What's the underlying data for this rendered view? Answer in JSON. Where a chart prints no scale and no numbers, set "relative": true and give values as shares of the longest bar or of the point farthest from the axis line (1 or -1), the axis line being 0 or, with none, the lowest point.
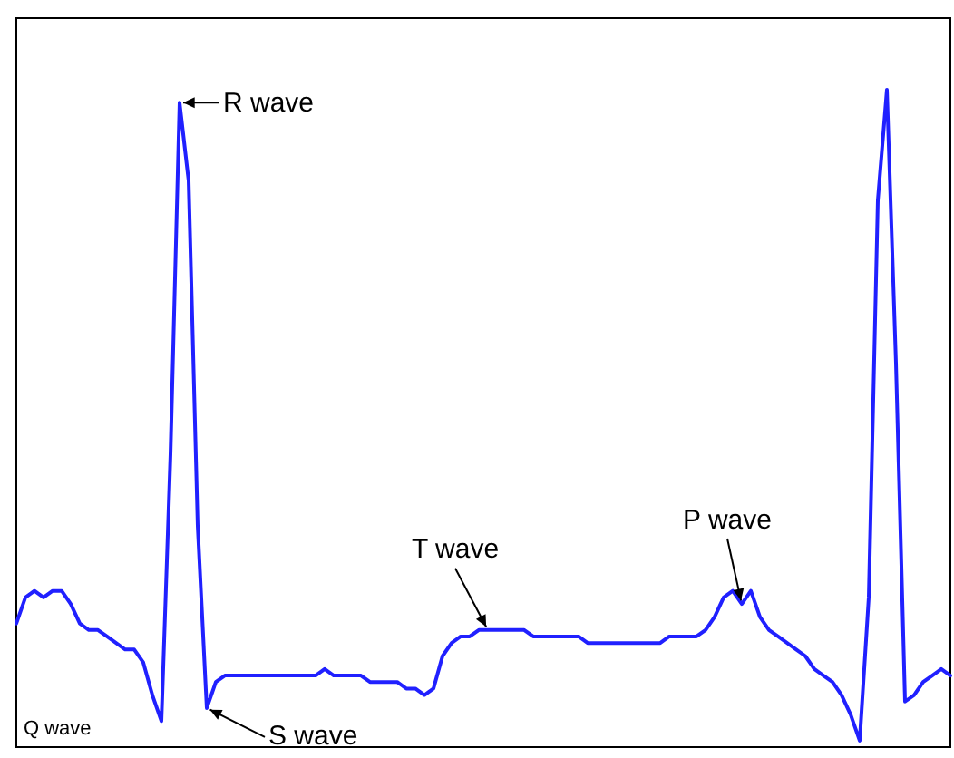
{
  "chart_data": {
    "type": "line",
    "relative": true,
    "color": "#2020ff",
    "marker": "none",
    "line_style": "solid",
    "categories": [
      null,
      null,
      null,
      null,
      null,
      null,
      null,
      null,
      null,
      null,
      null,
      null,
      null,
      null,
      null,
      null,
      null,
      null,
      null,
      null,
      null,
      null,
      null,
      null,
      null,
      null,
      null,
      null,
      null,
      null,
      null,
      null,
      null,
      null,
      null,
      null,
      null,
      null,
      null,
      null,
      null,
      null,
      null,
      null,
      null,
      null,
      null,
      null,
      null,
      null,
      null,
      null,
      null,
      null,
      null,
      null,
      null,
      null,
      null,
      null,
      null,
      null,
      null,
      null,
      null,
      null,
      null,
      null,
      null,
      null,
      null,
      null,
      null,
      null,
      null,
      null,
      null,
      null,
      null,
      null,
      null,
      null,
      null,
      null,
      null,
      null,
      null,
      null,
      null,
      null,
      null,
      null,
      null,
      null,
      null,
      null,
      null,
      null,
      null,
      null,
      null,
      null,
      null,
      null
    ],
    "values": [
      0.18,
      0.22,
      0.23,
      0.22,
      0.23,
      0.23,
      0.21,
      0.18,
      0.17,
      0.17,
      0.16,
      0.15,
      0.14,
      0.14,
      0.12,
      0.07,
      0.03,
      0.44,
      0.98,
      0.86,
      0.33,
      0.05,
      0.09,
      0.1,
      0.1,
      0.1,
      0.1,
      0.1,
      0.1,
      0.1,
      0.1,
      0.1,
      0.1,
      0.1,
      0.11,
      0.1,
      0.1,
      0.1,
      0.1,
      0.09,
      0.09,
      0.09,
      0.09,
      0.08,
      0.08,
      0.07,
      0.08,
      0.13,
      0.15,
      0.16,
      0.16,
      0.17,
      0.17,
      0.17,
      0.17,
      0.17,
      0.17,
      0.16,
      0.16,
      0.16,
      0.16,
      0.16,
      0.16,
      0.15,
      0.15,
      0.15,
      0.15,
      0.15,
      0.15,
      0.15,
      0.15,
      0.15,
      0.16,
      0.16,
      0.16,
      0.16,
      0.17,
      0.19,
      0.22,
      0.23,
      0.21,
      0.23,
      0.19,
      0.17,
      0.16,
      0.15,
      0.14,
      0.13,
      0.11,
      0.1,
      0.09,
      0.07,
      0.04,
      0,
      0.22,
      0.83,
      1,
      0.58,
      0.06,
      0.07,
      0.09,
      0.1,
      0.11,
      0.1
    ],
    "annotations": [
      "R wave",
      "S wave",
      "T wave",
      "P wave",
      "Q wave"
    ]
  }
}
